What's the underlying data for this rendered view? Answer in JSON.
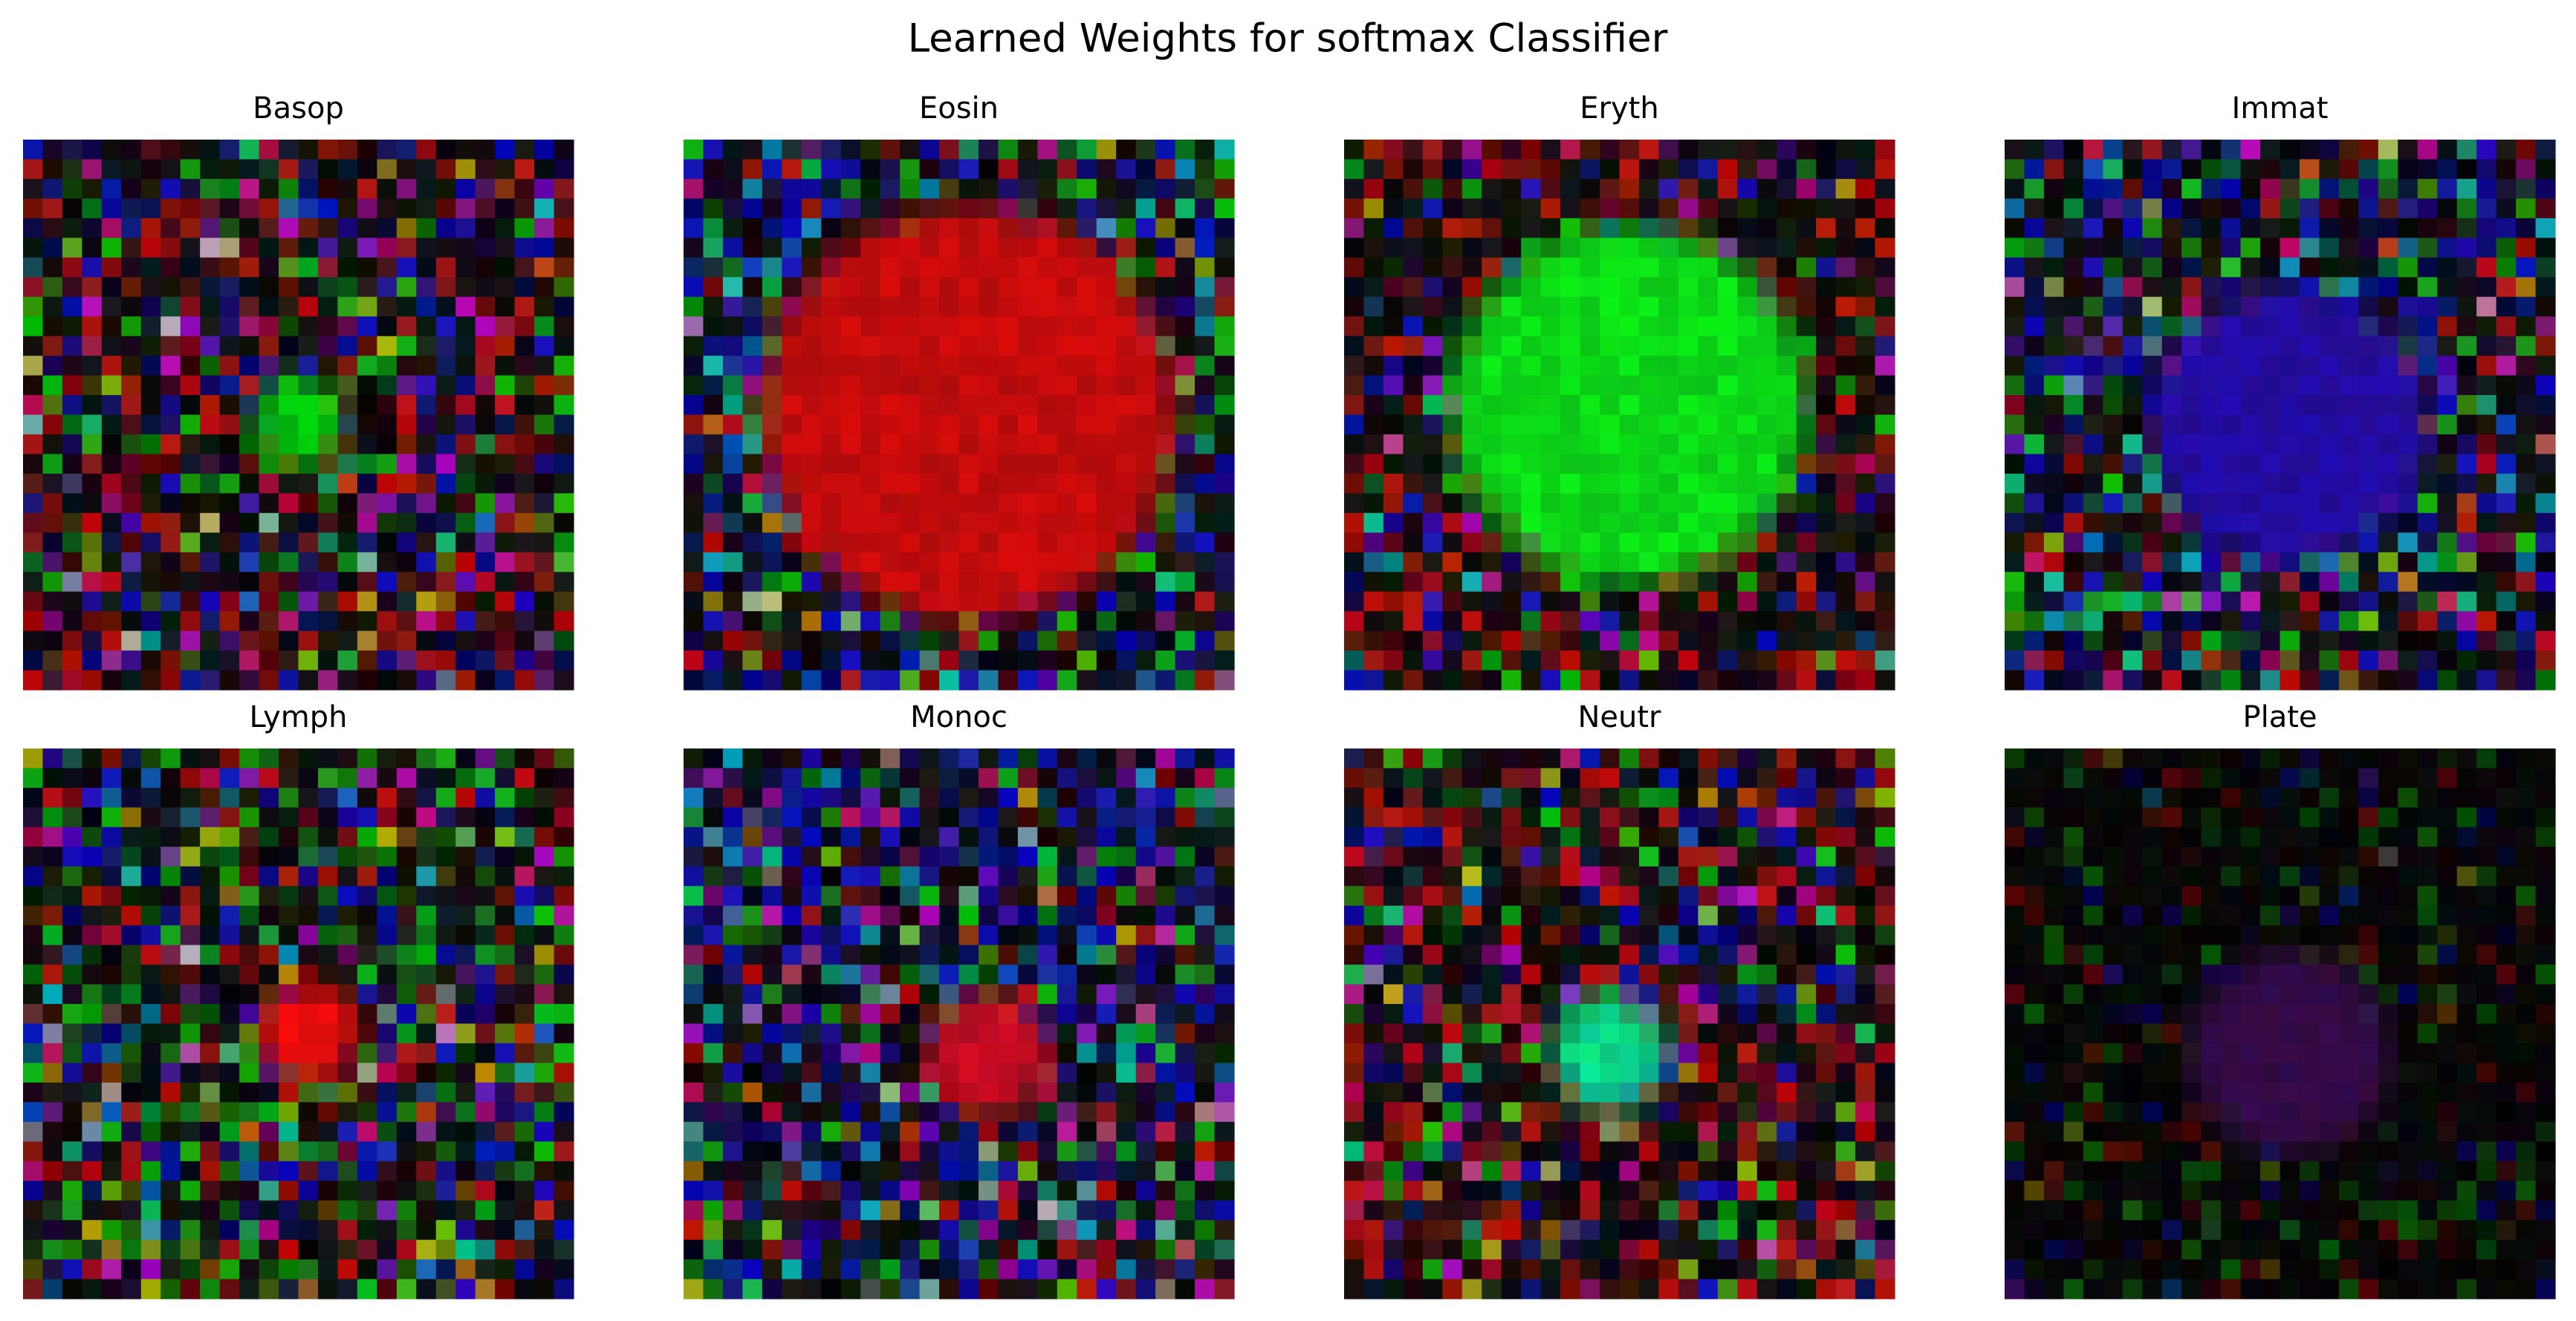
{
  "title": "Learned Weights for softmax Classifier",
  "panels": [
    "Basop",
    "Eosin",
    "Eryth",
    "Immat",
    "Lymph",
    "Monoc",
    "Neutr",
    "Plate"
  ]
}
